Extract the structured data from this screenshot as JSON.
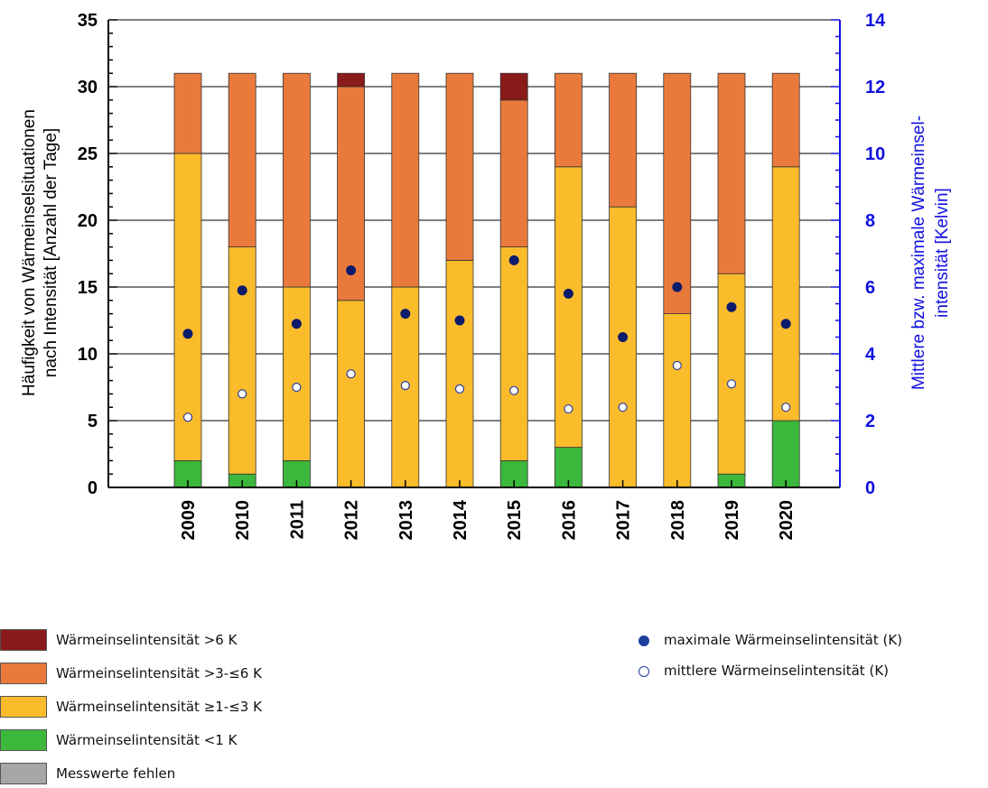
{
  "chart_data": {
    "type": "bar",
    "stacked": true,
    "categories": [
      "2009",
      "2010",
      "2011",
      "2012",
      "2013",
      "2014",
      "2015",
      "2016",
      "2017",
      "2018",
      "2019",
      "2020"
    ],
    "ylabel_left": "Häufigkeit von Wärmeinselsituationen nach Intensität [Anzahl der Tage]",
    "ylabel_left_lines": [
      "Häufigkeit von Wärmeinselsituationen",
      "nach Intensität [Anzahl der Tage]"
    ],
    "ylabel_right": "Mittlere bzw. maximale Wärmeinsel-intensität [Kelvin]",
    "ylabel_right_lines": [
      "Mittlere bzw. maximale Wärmeinsel-",
      "intensität [Kelvin]"
    ],
    "ylim_left": [
      0,
      35
    ],
    "yticks_left": [
      "0",
      "5",
      "10",
      "15",
      "20",
      "25",
      "30",
      "35"
    ],
    "ylim_right": [
      0,
      14
    ],
    "yticks_right": [
      "0",
      "2",
      "4",
      "6",
      "8",
      "10",
      "12",
      "14"
    ],
    "grid": "horizontal",
    "legend_position": "bottom",
    "series": [
      {
        "name": "Wärmeinselintensität <1 K",
        "color": "#3cb83c",
        "values": [
          2,
          1,
          2,
          0,
          0,
          0,
          2,
          3,
          0,
          0,
          1,
          5
        ]
      },
      {
        "name": "Wärmeinselintensität ≥1-≤3 K",
        "color": "#fbbc2c",
        "values": [
          23,
          17,
          13,
          14,
          15,
          17,
          16,
          21,
          21,
          13,
          15,
          19
        ]
      },
      {
        "name": "Wärmeinselintensität >3-≤6 K",
        "color": "#ea7a3c",
        "values": [
          6,
          13,
          16,
          16,
          16,
          14,
          11,
          7,
          10,
          18,
          15,
          7
        ]
      },
      {
        "name": "Wärmeinselintensität >6 K",
        "color": "#8b1a1a",
        "values": [
          0,
          0,
          0,
          1,
          0,
          0,
          2,
          0,
          0,
          0,
          0,
          0
        ]
      },
      {
        "name": "Messwerte fehlen",
        "color": "#a6a6a6",
        "values": [
          0,
          0,
          0,
          0,
          0,
          0,
          0,
          0,
          0,
          0,
          0,
          0
        ]
      }
    ],
    "points": [
      {
        "name": "maximale Wärmeinselintensität (K)",
        "axis": "right",
        "style": "filled",
        "color": "#0d1b6b",
        "values": [
          4.6,
          5.9,
          4.9,
          6.5,
          5.2,
          5.0,
          6.8,
          5.8,
          4.5,
          6.0,
          5.4,
          4.9
        ]
      },
      {
        "name": "mittlere Wärmeinselintensität (K)",
        "axis": "right",
        "style": "open",
        "color": "#2a3a9c",
        "values": [
          2.1,
          2.8,
          3.0,
          3.4,
          3.05,
          2.95,
          2.9,
          2.35,
          2.4,
          3.65,
          3.1,
          2.4
        ]
      }
    ]
  },
  "colors": {
    "left_axis": "#000000",
    "right_axis": "#1010e0",
    "grid": "#000000",
    "bar_outline": "#333333"
  },
  "legend": {
    "bars": [
      {
        "label": "Wärmeinselintensität >6 K",
        "color": "#8b1a1a"
      },
      {
        "label": "Wärmeinselintensität >3-≤6 K",
        "color": "#ea7a3c"
      },
      {
        "label": "Wärmeinselintensität ≥1-≤3 K",
        "color": "#fbbc2c"
      },
      {
        "label": "Wärmeinselintensität <1 K",
        "color": "#3cb83c"
      },
      {
        "label": "Messwerte fehlen",
        "color": "#a6a6a6"
      }
    ],
    "markers": [
      {
        "label": "maximale Wärmeinselintensität (K)",
        "style": "filled",
        "color": "#1f3f9e"
      },
      {
        "label": "mittlere Wärmeinselintensität (K)",
        "style": "open",
        "color": "#1f3f9e"
      }
    ]
  }
}
